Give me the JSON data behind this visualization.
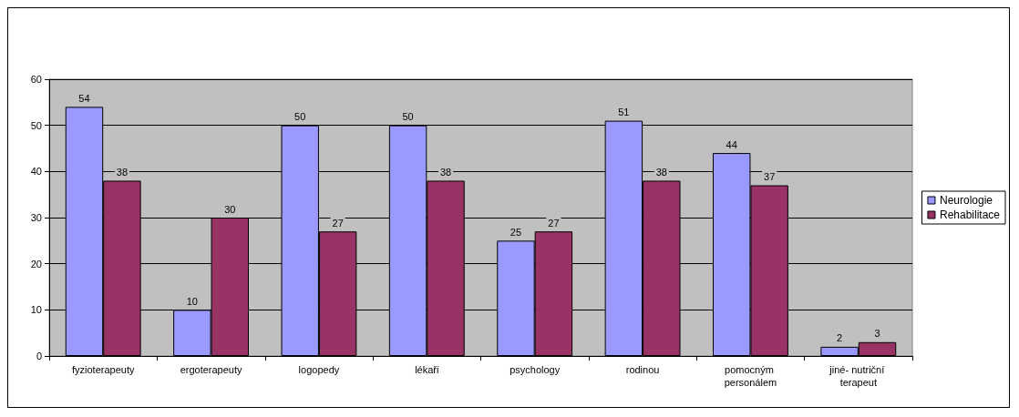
{
  "chart_data": {
    "type": "bar",
    "categories": [
      "fyzioterapeuty",
      "ergoterapeuty",
      "logopedy",
      "lékaři",
      "psychology",
      "rodinou",
      "pomocným personálem",
      "jiné- nutriční terapeut"
    ],
    "series": [
      {
        "name": "Neurologie",
        "color": "#9999ff",
        "values": [
          54,
          10,
          50,
          50,
          25,
          51,
          44,
          2
        ]
      },
      {
        "name": "Rehabilitace",
        "color": "#993366",
        "values": [
          38,
          30,
          27,
          38,
          27,
          38,
          37,
          3
        ]
      }
    ],
    "ylim": [
      0,
      60
    ],
    "yticks": [
      0,
      10,
      20,
      30,
      40,
      50,
      60
    ],
    "grid": "y",
    "legend": "right",
    "data_labels": true
  }
}
